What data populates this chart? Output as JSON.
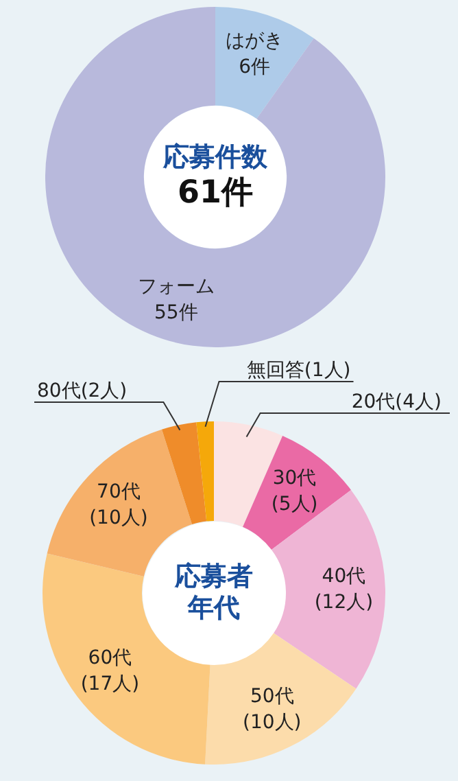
{
  "chart_data": [
    {
      "type": "donut",
      "title": "応募件数",
      "annotations": [
        "61件"
      ],
      "categories": [
        "はがき",
        "フォーム"
      ],
      "values": [
        6,
        55
      ],
      "value_labels": [
        "6件",
        "55件"
      ],
      "colors": [
        "#aecbe9",
        "#b8b9dc"
      ],
      "legend": false
    },
    {
      "type": "donut",
      "title": "応募者年代",
      "categories": [
        "20代",
        "30代",
        "40代",
        "50代",
        "60代",
        "70代",
        "80代",
        "無回答"
      ],
      "values": [
        4,
        5,
        12,
        10,
        17,
        10,
        2,
        1
      ],
      "value_labels": [
        "(4人)",
        "(5人)",
        "(12人)",
        "(10人)",
        "(17人)",
        "(10人)",
        "(2人)",
        "(1人)"
      ],
      "colors": [
        "#fbe3e3",
        "#ea6aa5",
        "#efb5d5",
        "#fcdcab",
        "#fbc97f",
        "#f6b06a",
        "#ef8c2a",
        "#f5a80a"
      ],
      "legend": false
    }
  ]
}
